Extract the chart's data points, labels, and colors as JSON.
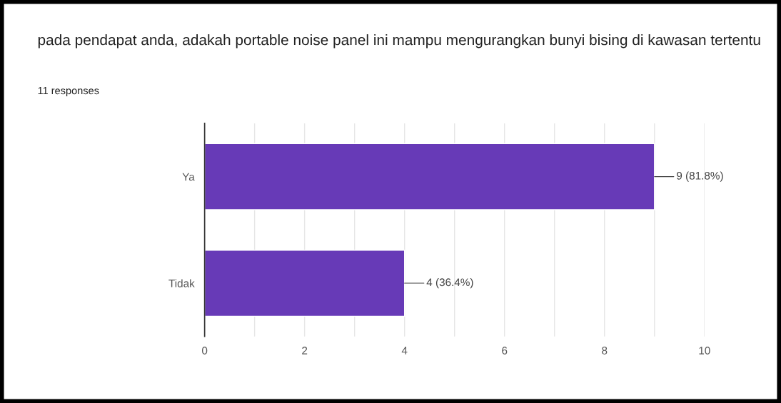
{
  "chart_data": {
    "type": "bar",
    "orientation": "horizontal",
    "title": "pada pendapat anda, adakah portable noise panel ini mampu mengurangkan bunyi bising di kawasan tertentu",
    "subtitle": "11 responses",
    "categories": [
      "Ya",
      "Tidak"
    ],
    "values": [
      9,
      4
    ],
    "value_labels": [
      "9 (81.8%)",
      "4 (36.4%)"
    ],
    "color": "#673ab7",
    "xlim": [
      0,
      10
    ],
    "xticks": [
      0,
      {
        "value": 1,
        "label": null
      },
      2,
      {
        "value": 3,
        "label": null
      },
      4,
      {
        "value": 5,
        "label": null
      },
      6,
      {
        "value": 7,
        "label": null
      },
      8,
      {
        "value": 9,
        "label": null
      },
      10
    ],
    "grid": "x",
    "legend": false
  }
}
